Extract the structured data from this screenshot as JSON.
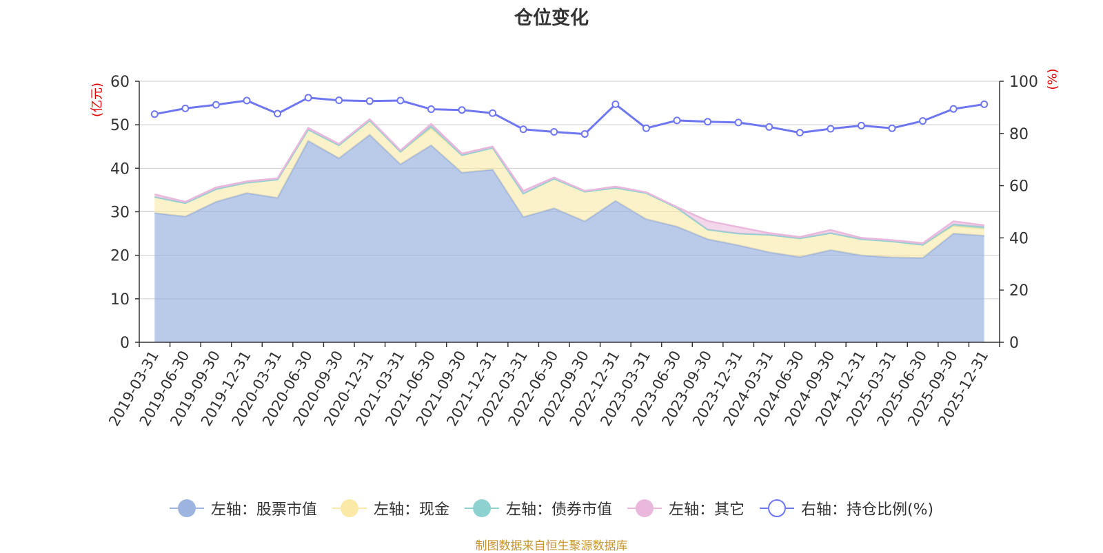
{
  "chart_data": {
    "type": "area",
    "title": "仓位变化",
    "left_axis_label": "(亿元)",
    "right_axis_label": "(%)",
    "left_ylim": [
      0,
      60
    ],
    "left_ticks": [
      0,
      10,
      20,
      30,
      40,
      50,
      60
    ],
    "right_ylim": [
      0,
      100
    ],
    "right_ticks": [
      0,
      20,
      40,
      60,
      80,
      100
    ],
    "categories": [
      "2019-03-31",
      "2019-06-30",
      "2019-09-30",
      "2019-12-31",
      "2020-03-31",
      "2020-06-30",
      "2020-09-30",
      "2020-12-31",
      "2021-03-31",
      "2021-06-30",
      "2021-09-30",
      "2021-12-31",
      "2022-03-31",
      "2022-06-30",
      "2022-09-30",
      "2022-12-31",
      "2023-03-31",
      "2023-06-30",
      "2023-09-30",
      "2023-12-31",
      "2024-03-31",
      "2024-06-30",
      "2024-09-30",
      "2024-12-31",
      "2025-03-31",
      "2025-06-30",
      "2025-09-30",
      "2025-12-31"
    ],
    "series": [
      {
        "name": "左轴：股票市值",
        "axis": "left",
        "type": "area",
        "values": [
          29.7,
          28.9,
          32.3,
          34.3,
          33.2,
          46.3,
          42.3,
          47.7,
          40.9,
          45.3,
          39.0,
          39.7,
          28.8,
          30.8,
          27.8,
          32.5,
          28.3,
          26.6,
          23.7,
          22.3,
          20.7,
          19.6,
          21.2,
          20.0,
          19.5,
          19.4,
          25.0,
          24.5
        ]
      },
      {
        "name": "左轴：现金",
        "axis": "left",
        "type": "area",
        "values": [
          3.7,
          3.1,
          2.9,
          2.4,
          4.2,
          2.6,
          3.0,
          3.3,
          2.9,
          3.9,
          4.0,
          5.0,
          5.4,
          6.8,
          6.8,
          3.0,
          6.0,
          4.3,
          2.2,
          2.7,
          4.0,
          4.3,
          3.9,
          3.7,
          3.7,
          3.0,
          1.7,
          1.6
        ]
      },
      {
        "name": "左轴：债券市值",
        "axis": "left",
        "type": "area",
        "values": [
          0,
          0,
          0,
          0,
          0,
          0,
          0,
          0,
          0,
          0.5,
          0,
          0,
          0,
          0,
          0,
          0,
          0,
          0,
          0,
          0,
          0,
          0,
          0,
          0,
          0,
          0,
          0.4,
          0.4
        ]
      },
      {
        "name": "左轴：其它",
        "axis": "left",
        "type": "area",
        "values": [
          0.6,
          0.3,
          0.4,
          0.3,
          0.3,
          0.4,
          0.3,
          0.3,
          0.3,
          0.5,
          0.4,
          0.3,
          0.6,
          0.3,
          0.2,
          0.3,
          0.2,
          0.2,
          2.0,
          1.5,
          0.4,
          0.3,
          0.7,
          0.3,
          0.3,
          0.4,
          0.7,
          0.4
        ]
      },
      {
        "name": "右轴：持仓比例(%)",
        "axis": "right",
        "type": "line",
        "values": [
          87.4,
          89.6,
          91.0,
          92.6,
          87.6,
          93.7,
          92.7,
          92.4,
          92.6,
          89.3,
          89.0,
          87.8,
          81.6,
          80.6,
          79.8,
          91.2,
          82.0,
          85.0,
          84.5,
          84.2,
          82.5,
          80.3,
          81.8,
          83.0,
          82.0,
          84.8,
          89.4,
          91.2
        ]
      }
    ],
    "colors": [
      "#9db4e0",
      "#fae9a7",
      "#8ed1d1",
      "#e9b8dc",
      "#6e76f0"
    ],
    "legend_position": "bottom"
  },
  "source_text": "制图数据来自恒生聚源数据库"
}
